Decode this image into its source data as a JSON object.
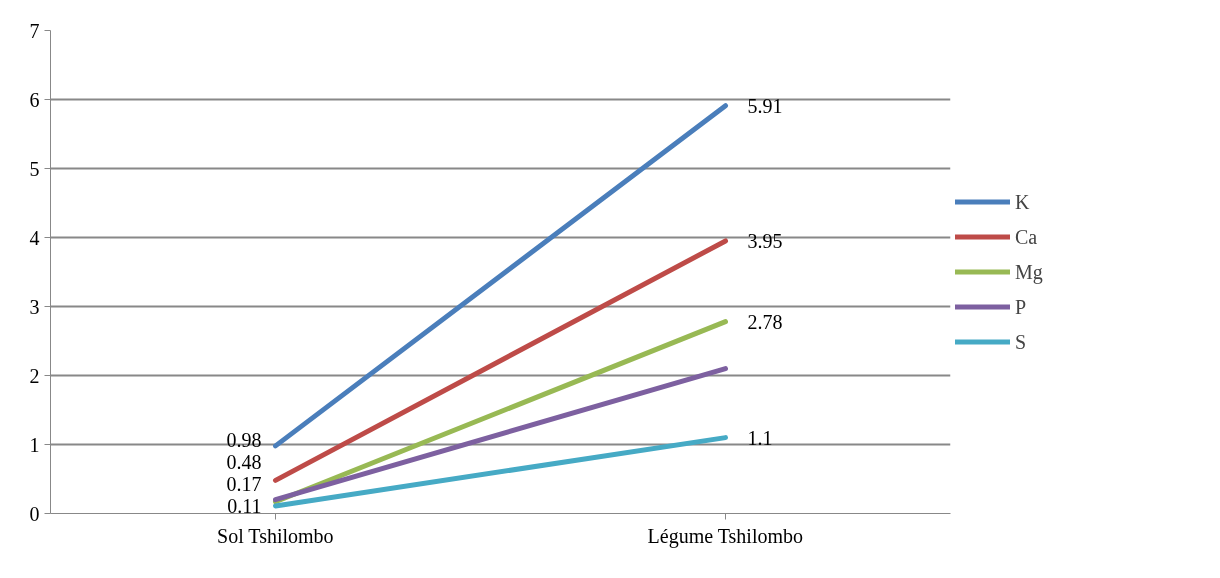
{
  "chart_data": {
    "type": "line",
    "categories": [
      "Sol Tshilombo",
      "Légume Tshilombo"
    ],
    "ylim": [
      0,
      7
    ],
    "yticks": [
      0,
      1,
      2,
      3,
      4,
      5,
      6,
      7
    ],
    "grid": "y",
    "legend": "right",
    "marker": "none",
    "line_style": "solid",
    "series": [
      {
        "name": "K",
        "color": "#4a7ebb",
        "values": [
          0.98,
          5.91
        ],
        "value_labels": [
          "0.98",
          "5.91"
        ]
      },
      {
        "name": "Ca",
        "color": "#be4b48",
        "values": [
          0.48,
          3.95
        ],
        "value_labels": [
          "0.48",
          "3.95"
        ]
      },
      {
        "name": "Mg",
        "color": "#98b954",
        "values": [
          0.17,
          2.78
        ],
        "value_labels": [
          "0.17",
          "2.78"
        ]
      },
      {
        "name": "P",
        "color": "#7d60a0",
        "values": [
          0.2,
          2.1
        ],
        "value_labels": [
          null,
          null
        ]
      },
      {
        "name": "S",
        "color": "#46aac5",
        "values": [
          0.11,
          1.1
        ],
        "value_labels": [
          "0.11",
          "1.1"
        ]
      }
    ]
  }
}
